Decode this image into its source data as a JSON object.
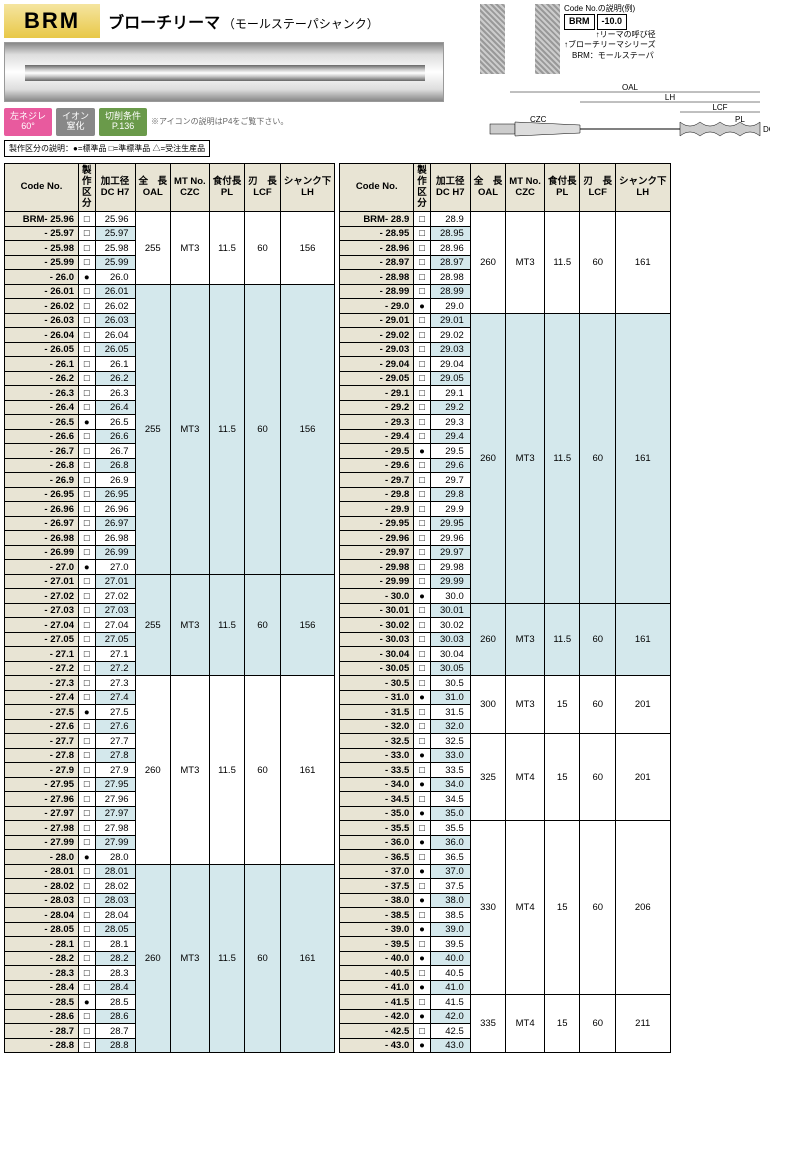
{
  "header": {
    "badge": "BRM",
    "title_jp": "ブローチリーマ",
    "subtitle_jp": "（モールステーパシャンク）",
    "code_example_label": "Code No.の説明(例)",
    "code_example_brm": "BRM",
    "code_example_val": "-10.0",
    "code_example_note1": "リーマの呼び径",
    "code_example_note2": "ブローチリーマシリーズ",
    "code_example_note3": "BRM：モールステーパ",
    "badges": {
      "pink_l1": "左ネジレ",
      "pink_l2": "60°",
      "gray_l1": "イオン",
      "gray_l2": "窒化",
      "green_l1": "切削条件",
      "green_l2": "P.136",
      "note": "※アイコンの説明はP4をご覧下さい。"
    },
    "legend": "製作区分の説明：●=標準品 □=準標準品 △=受注生産品",
    "diag_labels": {
      "oal": "OAL",
      "lh": "LH",
      "lcf": "LCF",
      "pl": "PL",
      "czc": "CZC",
      "dc": "DC"
    }
  },
  "columns": {
    "code": "Code No.",
    "kubun_l1": "製作",
    "kubun_l2": "区分",
    "dc_l1": "加工径",
    "dc_l2": "DC H7",
    "oal_l1": "全　長",
    "oal_l2": "OAL",
    "czc_l1": "MT No.",
    "czc_l2": "CZC",
    "pl_l1": "食付長",
    "pl_l2": "PL",
    "lcf_l1": "刃　長",
    "lcf_l2": "LCF",
    "lh_l1": "シャンク下",
    "lh_l2": "LH"
  },
  "left_groups": [
    {
      "oal": "255",
      "czc": "MT3",
      "pl": "11.5",
      "lcf": "60",
      "lh": "156",
      "rows": [
        {
          "c": "BRM- 25.96",
          "m": "sq",
          "d": "25.96",
          "a": 0
        },
        {
          "c": "- 25.97",
          "m": "sq",
          "d": "25.97",
          "a": 1
        },
        {
          "c": "- 25.98",
          "m": "sq",
          "d": "25.98",
          "a": 0
        },
        {
          "c": "- 25.99",
          "m": "sq",
          "d": "25.99",
          "a": 1
        },
        {
          "c": "- 26.0",
          "m": "fc",
          "d": "26.0",
          "a": 0
        }
      ]
    },
    {
      "oal": "255",
      "czc": "MT3",
      "pl": "11.5",
      "lcf": "60",
      "lh": "156",
      "rows": [
        {
          "c": "- 26.01",
          "m": "sq",
          "d": "26.01",
          "a": 1
        },
        {
          "c": "- 26.02",
          "m": "sq",
          "d": "26.02",
          "a": 0
        },
        {
          "c": "- 26.03",
          "m": "sq",
          "d": "26.03",
          "a": 1
        },
        {
          "c": "- 26.04",
          "m": "sq",
          "d": "26.04",
          "a": 0
        },
        {
          "c": "- 26.05",
          "m": "sq",
          "d": "26.05",
          "a": 1
        },
        {
          "c": "- 26.1",
          "m": "sq",
          "d": "26.1",
          "a": 0
        },
        {
          "c": "- 26.2",
          "m": "sq",
          "d": "26.2",
          "a": 1
        },
        {
          "c": "- 26.3",
          "m": "sq",
          "d": "26.3",
          "a": 0
        },
        {
          "c": "- 26.4",
          "m": "sq",
          "d": "26.4",
          "a": 1
        },
        {
          "c": "- 26.5",
          "m": "fc",
          "d": "26.5",
          "a": 0
        },
        {
          "c": "- 26.6",
          "m": "sq",
          "d": "26.6",
          "a": 1
        },
        {
          "c": "- 26.7",
          "m": "sq",
          "d": "26.7",
          "a": 0
        },
        {
          "c": "- 26.8",
          "m": "sq",
          "d": "26.8",
          "a": 1
        },
        {
          "c": "- 26.9",
          "m": "sq",
          "d": "26.9",
          "a": 0
        },
        {
          "c": "- 26.95",
          "m": "sq",
          "d": "26.95",
          "a": 1
        },
        {
          "c": "- 26.96",
          "m": "sq",
          "d": "26.96",
          "a": 0
        },
        {
          "c": "- 26.97",
          "m": "sq",
          "d": "26.97",
          "a": 1
        },
        {
          "c": "- 26.98",
          "m": "sq",
          "d": "26.98",
          "a": 0
        },
        {
          "c": "- 26.99",
          "m": "sq",
          "d": "26.99",
          "a": 1
        },
        {
          "c": "- 27.0",
          "m": "fc",
          "d": "27.0",
          "a": 0
        }
      ]
    },
    {
      "oal": "255",
      "czc": "MT3",
      "pl": "11.5",
      "lcf": "60",
      "lh": "156",
      "rows": [
        {
          "c": "- 27.01",
          "m": "sq",
          "d": "27.01",
          "a": 1
        },
        {
          "c": "- 27.02",
          "m": "sq",
          "d": "27.02",
          "a": 0
        },
        {
          "c": "- 27.03",
          "m": "sq",
          "d": "27.03",
          "a": 1
        },
        {
          "c": "- 27.04",
          "m": "sq",
          "d": "27.04",
          "a": 0
        },
        {
          "c": "- 27.05",
          "m": "sq",
          "d": "27.05",
          "a": 1
        },
        {
          "c": "- 27.1",
          "m": "sq",
          "d": "27.1",
          "a": 0
        },
        {
          "c": "- 27.2",
          "m": "sq",
          "d": "27.2",
          "a": 1
        }
      ]
    },
    {
      "oal": "260",
      "czc": "MT3",
      "pl": "11.5",
      "lcf": "60",
      "lh": "161",
      "rows": [
        {
          "c": "- 27.3",
          "m": "sq",
          "d": "27.3",
          "a": 0
        },
        {
          "c": "- 27.4",
          "m": "sq",
          "d": "27.4",
          "a": 1
        },
        {
          "c": "- 27.5",
          "m": "fc",
          "d": "27.5",
          "a": 0
        },
        {
          "c": "- 27.6",
          "m": "sq",
          "d": "27.6",
          "a": 1
        },
        {
          "c": "- 27.7",
          "m": "sq",
          "d": "27.7",
          "a": 0
        },
        {
          "c": "- 27.8",
          "m": "sq",
          "d": "27.8",
          "a": 1
        },
        {
          "c": "- 27.9",
          "m": "sq",
          "d": "27.9",
          "a": 0
        },
        {
          "c": "- 27.95",
          "m": "sq",
          "d": "27.95",
          "a": 1
        },
        {
          "c": "- 27.96",
          "m": "sq",
          "d": "27.96",
          "a": 0
        },
        {
          "c": "- 27.97",
          "m": "sq",
          "d": "27.97",
          "a": 1
        },
        {
          "c": "- 27.98",
          "m": "sq",
          "d": "27.98",
          "a": 0
        },
        {
          "c": "- 27.99",
          "m": "sq",
          "d": "27.99",
          "a": 1
        },
        {
          "c": "- 28.0",
          "m": "fc",
          "d": "28.0",
          "a": 0
        }
      ]
    },
    {
      "oal": "260",
      "czc": "MT3",
      "pl": "11.5",
      "lcf": "60",
      "lh": "161",
      "rows": [
        {
          "c": "- 28.01",
          "m": "sq",
          "d": "28.01",
          "a": 1
        },
        {
          "c": "- 28.02",
          "m": "sq",
          "d": "28.02",
          "a": 0
        },
        {
          "c": "- 28.03",
          "m": "sq",
          "d": "28.03",
          "a": 1
        },
        {
          "c": "- 28.04",
          "m": "sq",
          "d": "28.04",
          "a": 0
        },
        {
          "c": "- 28.05",
          "m": "sq",
          "d": "28.05",
          "a": 1
        },
        {
          "c": "- 28.1",
          "m": "sq",
          "d": "28.1",
          "a": 0
        },
        {
          "c": "- 28.2",
          "m": "sq",
          "d": "28.2",
          "a": 1
        },
        {
          "c": "- 28.3",
          "m": "sq",
          "d": "28.3",
          "a": 0
        },
        {
          "c": "- 28.4",
          "m": "sq",
          "d": "28.4",
          "a": 1
        },
        {
          "c": "- 28.5",
          "m": "fc",
          "d": "28.5",
          "a": 0
        },
        {
          "c": "- 28.6",
          "m": "sq",
          "d": "28.6",
          "a": 1
        },
        {
          "c": "- 28.7",
          "m": "sq",
          "d": "28.7",
          "a": 0
        },
        {
          "c": "- 28.8",
          "m": "sq",
          "d": "28.8",
          "a": 1
        }
      ]
    }
  ],
  "right_groups": [
    {
      "oal": "260",
      "czc": "MT3",
      "pl": "11.5",
      "lcf": "60",
      "lh": "161",
      "rows": [
        {
          "c": "BRM- 28.9",
          "m": "sq",
          "d": "28.9",
          "a": 0
        },
        {
          "c": "- 28.95",
          "m": "sq",
          "d": "28.95",
          "a": 1
        },
        {
          "c": "- 28.96",
          "m": "sq",
          "d": "28.96",
          "a": 0
        },
        {
          "c": "- 28.97",
          "m": "sq",
          "d": "28.97",
          "a": 1
        },
        {
          "c": "- 28.98",
          "m": "sq",
          "d": "28.98",
          "a": 0
        },
        {
          "c": "- 28.99",
          "m": "sq",
          "d": "28.99",
          "a": 1
        },
        {
          "c": "- 29.0",
          "m": "fc",
          "d": "29.0",
          "a": 0
        }
      ]
    },
    {
      "oal": "260",
      "czc": "MT3",
      "pl": "11.5",
      "lcf": "60",
      "lh": "161",
      "rows": [
        {
          "c": "- 29.01",
          "m": "sq",
          "d": "29.01",
          "a": 1
        },
        {
          "c": "- 29.02",
          "m": "sq",
          "d": "29.02",
          "a": 0
        },
        {
          "c": "- 29.03",
          "m": "sq",
          "d": "29.03",
          "a": 1
        },
        {
          "c": "- 29.04",
          "m": "sq",
          "d": "29.04",
          "a": 0
        },
        {
          "c": "- 29.05",
          "m": "sq",
          "d": "29.05",
          "a": 1
        },
        {
          "c": "- 29.1",
          "m": "sq",
          "d": "29.1",
          "a": 0
        },
        {
          "c": "- 29.2",
          "m": "sq",
          "d": "29.2",
          "a": 1
        },
        {
          "c": "- 29.3",
          "m": "sq",
          "d": "29.3",
          "a": 0
        },
        {
          "c": "- 29.4",
          "m": "sq",
          "d": "29.4",
          "a": 1
        },
        {
          "c": "- 29.5",
          "m": "fc",
          "d": "29.5",
          "a": 0
        },
        {
          "c": "- 29.6",
          "m": "sq",
          "d": "29.6",
          "a": 1
        },
        {
          "c": "- 29.7",
          "m": "sq",
          "d": "29.7",
          "a": 0
        },
        {
          "c": "- 29.8",
          "m": "sq",
          "d": "29.8",
          "a": 1
        },
        {
          "c": "- 29.9",
          "m": "sq",
          "d": "29.9",
          "a": 0
        },
        {
          "c": "- 29.95",
          "m": "sq",
          "d": "29.95",
          "a": 1
        },
        {
          "c": "- 29.96",
          "m": "sq",
          "d": "29.96",
          "a": 0
        },
        {
          "c": "- 29.97",
          "m": "sq",
          "d": "29.97",
          "a": 1
        },
        {
          "c": "- 29.98",
          "m": "sq",
          "d": "29.98",
          "a": 0
        },
        {
          "c": "- 29.99",
          "m": "sq",
          "d": "29.99",
          "a": 1
        },
        {
          "c": "- 30.0",
          "m": "fc",
          "d": "30.0",
          "a": 0
        }
      ]
    },
    {
      "oal": "260",
      "czc": "MT3",
      "pl": "11.5",
      "lcf": "60",
      "lh": "161",
      "rows": [
        {
          "c": "- 30.01",
          "m": "sq",
          "d": "30.01",
          "a": 1
        },
        {
          "c": "- 30.02",
          "m": "sq",
          "d": "30.02",
          "a": 0
        },
        {
          "c": "- 30.03",
          "m": "sq",
          "d": "30.03",
          "a": 1
        },
        {
          "c": "- 30.04",
          "m": "sq",
          "d": "30.04",
          "a": 0
        },
        {
          "c": "- 30.05",
          "m": "sq",
          "d": "30.05",
          "a": 1
        }
      ]
    },
    {
      "oal": "300",
      "czc": "MT3",
      "pl": "15",
      "lcf": "60",
      "lh": "201",
      "rows": [
        {
          "c": "- 30.5",
          "m": "sq",
          "d": "30.5",
          "a": 0
        },
        {
          "c": "- 31.0",
          "m": "fc",
          "d": "31.0",
          "a": 1
        },
        {
          "c": "- 31.5",
          "m": "sq",
          "d": "31.5",
          "a": 0
        },
        {
          "c": "- 32.0",
          "m": "sq",
          "d": "32.0",
          "a": 1
        }
      ]
    },
    {
      "oal": "325",
      "czc": "MT4",
      "pl": "15",
      "lcf": "60",
      "lh": "201",
      "rows": [
        {
          "c": "- 32.5",
          "m": "sq",
          "d": "32.5",
          "a": 0
        },
        {
          "c": "- 33.0",
          "m": "fc",
          "d": "33.0",
          "a": 1
        },
        {
          "c": "- 33.5",
          "m": "sq",
          "d": "33.5",
          "a": 0
        },
        {
          "c": "- 34.0",
          "m": "fc",
          "d": "34.0",
          "a": 1
        },
        {
          "c": "- 34.5",
          "m": "sq",
          "d": "34.5",
          "a": 0
        },
        {
          "c": "- 35.0",
          "m": "fc",
          "d": "35.0",
          "a": 1
        }
      ]
    },
    {
      "oal": "330",
      "czc": "MT4",
      "pl": "15",
      "lcf": "60",
      "lh": "206",
      "rows": [
        {
          "c": "- 35.5",
          "m": "sq",
          "d": "35.5",
          "a": 0
        },
        {
          "c": "- 36.0",
          "m": "fc",
          "d": "36.0",
          "a": 1
        },
        {
          "c": "- 36.5",
          "m": "sq",
          "d": "36.5",
          "a": 0
        },
        {
          "c": "- 37.0",
          "m": "fc",
          "d": "37.0",
          "a": 1
        },
        {
          "c": "- 37.5",
          "m": "sq",
          "d": "37.5",
          "a": 0
        },
        {
          "c": "- 38.0",
          "m": "fc",
          "d": "38.0",
          "a": 1
        },
        {
          "c": "- 38.5",
          "m": "sq",
          "d": "38.5",
          "a": 0
        },
        {
          "c": "- 39.0",
          "m": "fc",
          "d": "39.0",
          "a": 1
        },
        {
          "c": "- 39.5",
          "m": "sq",
          "d": "39.5",
          "a": 0
        },
        {
          "c": "- 40.0",
          "m": "fc",
          "d": "40.0",
          "a": 1
        },
        {
          "c": "- 40.5",
          "m": "sq",
          "d": "40.5",
          "a": 0
        },
        {
          "c": "- 41.0",
          "m": "fc",
          "d": "41.0",
          "a": 1
        }
      ]
    },
    {
      "oal": "335",
      "czc": "MT4",
      "pl": "15",
      "lcf": "60",
      "lh": "211",
      "rows": [
        {
          "c": "- 41.5",
          "m": "sq",
          "d": "41.5",
          "a": 0
        },
        {
          "c": "- 42.0",
          "m": "fc",
          "d": "42.0",
          "a": 1
        },
        {
          "c": "- 42.5",
          "m": "sq",
          "d": "42.5",
          "a": 0
        },
        {
          "c": "- 43.0",
          "m": "fc",
          "d": "43.0",
          "a": 1
        }
      ]
    }
  ]
}
